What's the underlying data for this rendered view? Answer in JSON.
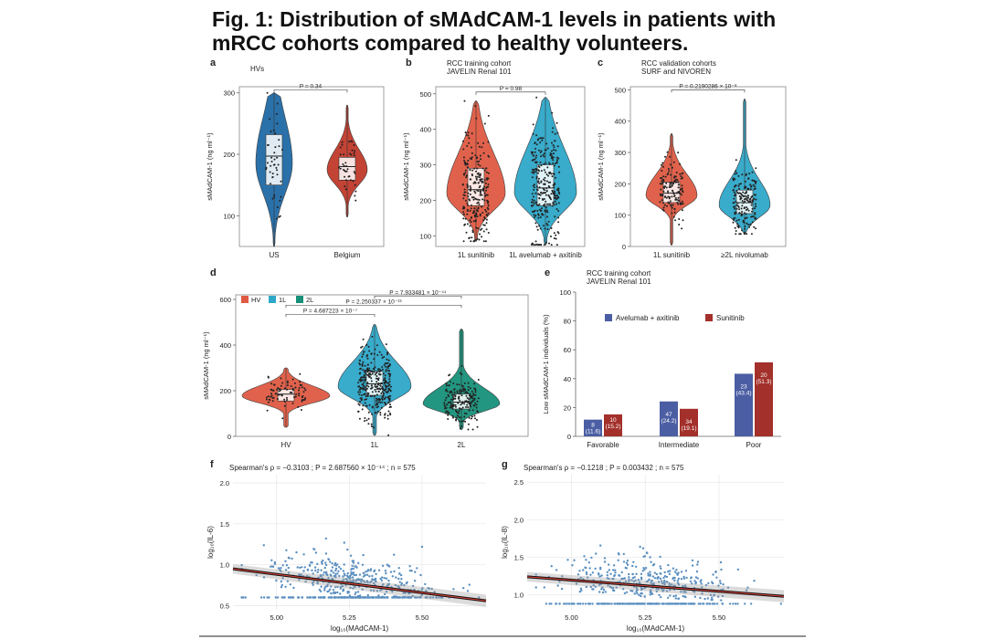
{
  "title": "Fig. 1: Distribution of sMAdCAM-1 levels in patients with mRCC cohorts compared to healthy volunteers.",
  "colors": {
    "blue": "#1f6aa6",
    "red": "#c0392b",
    "red_light": "#e05a43",
    "cyan": "#2fa7c9",
    "teal": "#17917a",
    "bar_blue": "#4b5ea3",
    "bar_red": "#a3302a",
    "scatter": "#5b8fc0"
  },
  "chart_data": [
    {
      "panel": "a",
      "type": "violin",
      "subtitle": "HVs",
      "ylabel": "sMAdCAM-1 (ng ml⁻¹)",
      "ylim": [
        50,
        310
      ],
      "yticks": [
        100,
        200,
        300
      ],
      "categories": [
        "US",
        "Belgium"
      ],
      "series": [
        {
          "name": "US",
          "color": "blue",
          "min": 50,
          "q1": 150,
          "median": 197,
          "q3": 232,
          "max": 300,
          "n": 45
        },
        {
          "name": "Belgium",
          "color": "red",
          "min": 98,
          "q1": 158,
          "median": 180,
          "q3": 195,
          "max": 280,
          "n": 40
        }
      ],
      "annotations": [
        {
          "text": "P = 0.34",
          "between": [
            0,
            1
          ],
          "y": 305
        }
      ]
    },
    {
      "panel": "b",
      "type": "violin",
      "subtitle": "RCC training cohort",
      "subtitle2": "JAVELIN Renal 101",
      "ylabel": "sMAdCAM-1 (ng ml⁻¹)",
      "ylim": [
        70,
        520
      ],
      "yticks": [
        100,
        200,
        300,
        400,
        500
      ],
      "categories": [
        "1L sunitinib",
        "1L avelumab + axitinib"
      ],
      "series": [
        {
          "name": "1L sunitinib",
          "color": "red_light",
          "min": 85,
          "q1": 185,
          "median": 230,
          "q3": 290,
          "max": 480,
          "n": 260
        },
        {
          "name": "1L avelumab + axitinib",
          "color": "cyan",
          "min": 75,
          "q1": 185,
          "median": 235,
          "q3": 300,
          "max": 490,
          "n": 290
        }
      ],
      "annotations": [
        {
          "text": "P = 0.98",
          "between": [
            0,
            1
          ],
          "y": 505
        }
      ]
    },
    {
      "panel": "c",
      "type": "violin",
      "subtitle": "RCC validation cohorts",
      "subtitle2": "SURF and NIVOREN",
      "ylabel": "sMAdCAM-1 (ng ml⁻¹)",
      "ylim": [
        0,
        510
      ],
      "yticks": [
        0,
        100,
        200,
        300,
        400,
        500
      ],
      "categories": [
        "1L sunitinib",
        "≥2L nivolumab"
      ],
      "series": [
        {
          "name": "1L sunitinib",
          "color": "red_light",
          "min": 5,
          "q1": 140,
          "median": 170,
          "q3": 205,
          "max": 360,
          "n": 140
        },
        {
          "name": "≥2L nivolumab",
          "color": "cyan",
          "min": 40,
          "q1": 105,
          "median": 140,
          "q3": 180,
          "max": 470,
          "n": 190
        }
      ],
      "annotations": [
        {
          "text": "P = 0.2190286 × 10⁻⁸",
          "between": [
            0,
            1
          ],
          "y": 500
        }
      ]
    },
    {
      "panel": "d",
      "type": "violin",
      "ylabel": "sMAdCAM-1 (ng ml⁻¹)",
      "ylim": [
        0,
        620
      ],
      "yticks": [
        0,
        200,
        400,
        600
      ],
      "categories": [
        "HV",
        "1L",
        "2L"
      ],
      "legend": [
        "HV",
        "1L",
        "2L"
      ],
      "series": [
        {
          "name": "HV",
          "color": "red_light",
          "min": 40,
          "q1": 155,
          "median": 185,
          "q3": 205,
          "max": 300,
          "n": 85
        },
        {
          "name": "1L",
          "color": "cyan",
          "min": 5,
          "q1": 180,
          "median": 230,
          "q3": 285,
          "max": 490,
          "n": 330
        },
        {
          "name": "2L",
          "color": "teal",
          "min": 30,
          "q1": 120,
          "median": 150,
          "q3": 185,
          "max": 470,
          "n": 190
        }
      ],
      "annotations": [
        {
          "text": "P = 4.687223 × 10⁻⁷",
          "between": [
            0,
            1
          ],
          "y": 535
        },
        {
          "text": "P = 2.250337 × 10⁻¹³",
          "between": [
            0,
            2
          ],
          "y": 575
        },
        {
          "text": "P = 7.933481 × 10⁻⁴⁴",
          "between": [
            1,
            2
          ],
          "y": 615
        }
      ]
    },
    {
      "panel": "e",
      "type": "bar",
      "subtitle": "RCC training cohort",
      "subtitle2": "JAVELIN Renal 101",
      "ylabel": "Low sMAdCAM-1 individuals (%)",
      "ylim": [
        0,
        100
      ],
      "yticks": [
        0,
        20,
        40,
        60,
        80,
        100
      ],
      "categories": [
        "Favorable",
        "Intermediate",
        "Poor"
      ],
      "series": [
        {
          "name": "Avelumab + axitinib",
          "color": "bar_blue",
          "values": [
            11.6,
            24.2,
            43.4
          ],
          "counts": [
            "8",
            "47",
            "23"
          ],
          "labels": [
            "(11.6)",
            "(24.2)",
            "(43.4)"
          ]
        },
        {
          "name": "Sunitinib",
          "color": "bar_red",
          "values": [
            15.2,
            19.1,
            51.3
          ],
          "counts": [
            "10",
            "34",
            "20"
          ],
          "labels": [
            "(15.2)",
            "(19.1)",
            "(51.3)"
          ]
        }
      ]
    },
    {
      "panel": "f",
      "type": "scatter",
      "title": "Spearman's ρ = −0.3103 ; P = 2.687560 × 10⁻¹⁴ ; n = 575",
      "xlabel": "log₁₀(MAdCAM-1)",
      "ylabel": "log₁₀(IL-6)",
      "xlim": [
        4.85,
        5.72
      ],
      "ylim": [
        0.45,
        2.1
      ],
      "xticks": [
        5.0,
        5.25,
        5.5
      ],
      "xtick_labels": [
        "5.00",
        "5.25",
        "5.50"
      ],
      "yticks": [
        0.5,
        1.0,
        1.5,
        2.0
      ],
      "ytick_labels": [
        "0.5",
        "1.0",
        "1.5",
        "2.0"
      ],
      "fit": {
        "x": [
          4.85,
          5.72
        ],
        "y": [
          0.95,
          0.56
        ]
      },
      "n_points": 575,
      "floor": 0.6
    },
    {
      "panel": "g",
      "type": "scatter",
      "title": "Spearman's ρ = −0.1218 ; P = 0.003432 ; n = 575",
      "xlabel": "log₁₀(MAdCAM-1)",
      "ylabel": "log₁₀(IL-8)",
      "xlim": [
        4.85,
        5.72
      ],
      "ylim": [
        0.8,
        2.6
      ],
      "xticks": [
        5.0,
        5.25,
        5.5
      ],
      "xtick_labels": [
        "5.00",
        "5.25",
        "5.50"
      ],
      "yticks": [
        1.0,
        1.5,
        2.0,
        2.5
      ],
      "ytick_labels": [
        "1.0",
        "1.5",
        "2.0",
        "2.5"
      ],
      "fit": {
        "x": [
          4.85,
          5.72
        ],
        "y": [
          1.24,
          0.98
        ]
      },
      "n_points": 575,
      "floor": 0.88
    }
  ]
}
